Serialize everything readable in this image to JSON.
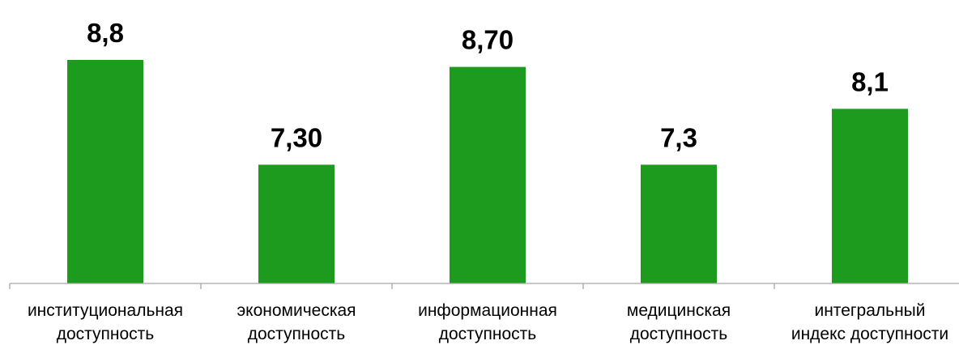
{
  "chart_data": {
    "type": "bar",
    "categories": [
      [
        "институциональная",
        "доступность"
      ],
      [
        "экономическая",
        "доступность"
      ],
      [
        "информационная",
        "доступность"
      ],
      [
        "медицинская",
        "доступность"
      ],
      [
        "интегральный",
        "индекс доступности"
      ]
    ],
    "values": [
      8.8,
      7.3,
      8.7,
      7.3,
      8.1
    ],
    "value_labels": [
      "8,8",
      "7,30",
      "8,70",
      "7,3",
      "8,1"
    ],
    "ylim": [
      5.6,
      9.0
    ],
    "grid": false,
    "legend": "none",
    "bar_color": "#1c9b1f",
    "axis_color": "#a6a6a6",
    "title": "",
    "xlabel": "",
    "ylabel": ""
  }
}
